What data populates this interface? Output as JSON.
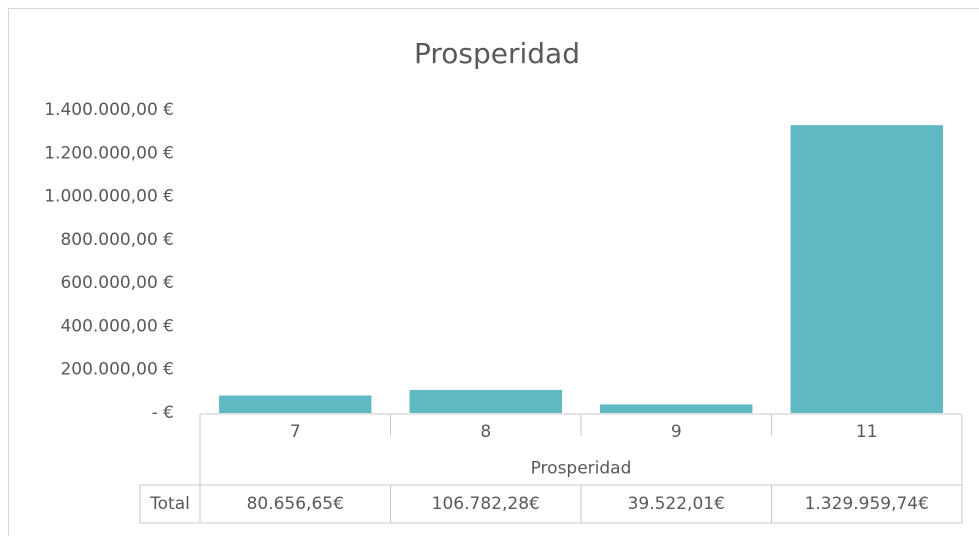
{
  "chart_data": {
    "type": "bar",
    "title": "Prosperidad",
    "categories": [
      "7",
      "8",
      "9",
      "11"
    ],
    "values": [
      80656.65,
      106782.28,
      39522.01,
      1329959.74
    ],
    "value_labels": [
      "80.656,65€",
      "106.782,28€",
      "39.522,01€",
      "1.329.959,74€"
    ],
    "color": "#5fb8c2",
    "x_label": "Prosperidad",
    "table_row_label": "Total",
    "ylim": [
      0,
      1400000
    ],
    "yticks": [
      {
        "value": 0,
        "label": "-  €"
      },
      {
        "value": 200000,
        "label": "200.000,00 €"
      },
      {
        "value": 400000,
        "label": "400.000,00 €"
      },
      {
        "value": 600000,
        "label": "600.000,00 €"
      },
      {
        "value": 800000,
        "label": "800.000,00 €"
      },
      {
        "value": 1000000,
        "label": "1.000.000,00 €"
      },
      {
        "value": 1200000,
        "label": "1.200.000,00 €"
      },
      {
        "value": 1400000,
        "label": "1.400.000,00 €"
      }
    ],
    "grid": false
  }
}
